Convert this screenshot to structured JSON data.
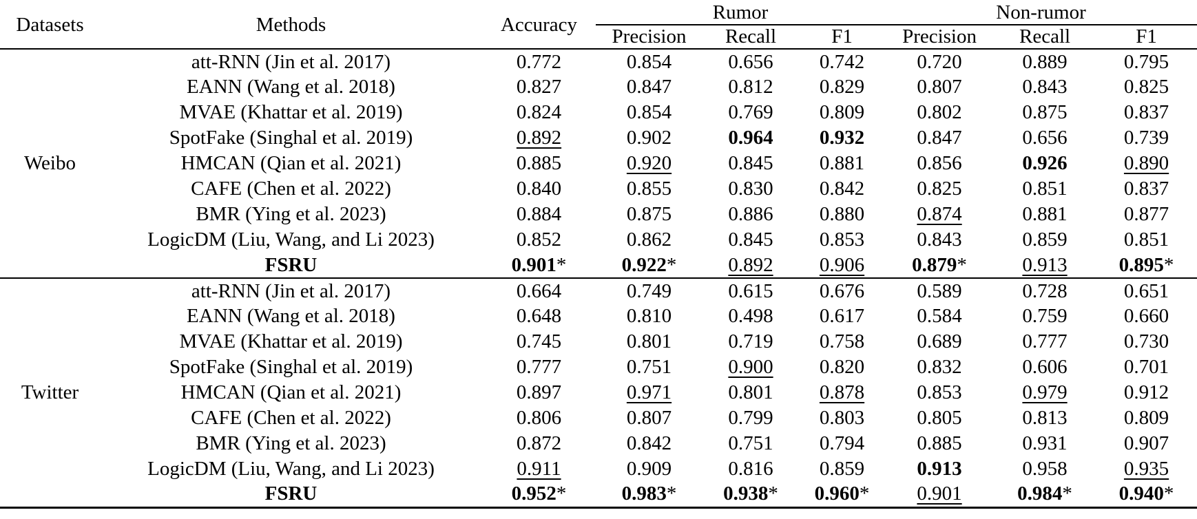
{
  "ink_color": "#000000",
  "background_color": "#ffffff",
  "table": {
    "headers": {
      "datasets": "Datasets",
      "methods": "Methods",
      "accuracy": "Accuracy",
      "rumor": "Rumor",
      "non_rumor": "Non-rumor",
      "sub": [
        "Precision",
        "Recall",
        "F1",
        "Precision",
        "Recall",
        "F1"
      ]
    },
    "emphasis_legend": {
      "b": "bold value",
      "u": "underlined value",
      "s": "asterisk marker after value"
    },
    "sections": [
      {
        "dataset": "Weibo",
        "rows": [
          {
            "method": "att-RNN (Jin et al. 2017)",
            "cells": [
              {
                "v": "0.772"
              },
              {
                "v": "0.854"
              },
              {
                "v": "0.656"
              },
              {
                "v": "0.742"
              },
              {
                "v": "0.720"
              },
              {
                "v": "0.889"
              },
              {
                "v": "0.795"
              }
            ]
          },
          {
            "method": "EANN (Wang et al. 2018)",
            "cells": [
              {
                "v": "0.827"
              },
              {
                "v": "0.847"
              },
              {
                "v": "0.812"
              },
              {
                "v": "0.829"
              },
              {
                "v": "0.807"
              },
              {
                "v": "0.843"
              },
              {
                "v": "0.825"
              }
            ]
          },
          {
            "method": "MVAE (Khattar et al. 2019)",
            "cells": [
              {
                "v": "0.824"
              },
              {
                "v": "0.854"
              },
              {
                "v": "0.769"
              },
              {
                "v": "0.809"
              },
              {
                "v": "0.802"
              },
              {
                "v": "0.875"
              },
              {
                "v": "0.837"
              }
            ]
          },
          {
            "method": "SpotFake (Singhal et al. 2019)",
            "cells": [
              {
                "v": "0.892",
                "u": 1
              },
              {
                "v": "0.902"
              },
              {
                "v": "0.964",
                "b": 1
              },
              {
                "v": "0.932",
                "b": 1
              },
              {
                "v": "0.847"
              },
              {
                "v": "0.656"
              },
              {
                "v": "0.739"
              }
            ]
          },
          {
            "method": "HMCAN (Qian et al. 2021)",
            "cells": [
              {
                "v": "0.885"
              },
              {
                "v": "0.920",
                "u": 1
              },
              {
                "v": "0.845"
              },
              {
                "v": "0.881"
              },
              {
                "v": "0.856"
              },
              {
                "v": "0.926",
                "b": 1
              },
              {
                "v": "0.890",
                "u": 1
              }
            ]
          },
          {
            "method": "CAFE (Chen et al. 2022)",
            "cells": [
              {
                "v": "0.840"
              },
              {
                "v": "0.855"
              },
              {
                "v": "0.830"
              },
              {
                "v": "0.842"
              },
              {
                "v": "0.825"
              },
              {
                "v": "0.851"
              },
              {
                "v": "0.837"
              }
            ]
          },
          {
            "method": "BMR (Ying et al. 2023)",
            "cells": [
              {
                "v": "0.884"
              },
              {
                "v": "0.875"
              },
              {
                "v": "0.886"
              },
              {
                "v": "0.880"
              },
              {
                "v": "0.874",
                "u": 1
              },
              {
                "v": "0.881"
              },
              {
                "v": "0.877"
              }
            ]
          },
          {
            "method": "LogicDM (Liu, Wang, and Li 2023)",
            "cells": [
              {
                "v": "0.852"
              },
              {
                "v": "0.862"
              },
              {
                "v": "0.845"
              },
              {
                "v": "0.853"
              },
              {
                "v": "0.843"
              },
              {
                "v": "0.859"
              },
              {
                "v": "0.851"
              }
            ]
          },
          {
            "method": "FSRU",
            "bold_method": 1,
            "cells": [
              {
                "v": "0.901",
                "b": 1,
                "s": 1
              },
              {
                "v": "0.922",
                "b": 1,
                "s": 1
              },
              {
                "v": "0.892",
                "u": 1
              },
              {
                "v": "0.906",
                "u": 1
              },
              {
                "v": "0.879",
                "b": 1,
                "s": 1
              },
              {
                "v": "0.913",
                "u": 1
              },
              {
                "v": "0.895",
                "b": 1,
                "s": 1
              }
            ]
          }
        ]
      },
      {
        "dataset": "Twitter",
        "rows": [
          {
            "method": "att-RNN (Jin et al. 2017)",
            "cells": [
              {
                "v": "0.664"
              },
              {
                "v": "0.749"
              },
              {
                "v": "0.615"
              },
              {
                "v": "0.676"
              },
              {
                "v": "0.589"
              },
              {
                "v": "0.728"
              },
              {
                "v": "0.651"
              }
            ]
          },
          {
            "method": "EANN (Wang et al. 2018)",
            "cells": [
              {
                "v": "0.648"
              },
              {
                "v": "0.810"
              },
              {
                "v": "0.498"
              },
              {
                "v": "0.617"
              },
              {
                "v": "0.584"
              },
              {
                "v": "0.759"
              },
              {
                "v": "0.660"
              }
            ]
          },
          {
            "method": "MVAE (Khattar et al. 2019)",
            "cells": [
              {
                "v": "0.745"
              },
              {
                "v": "0.801"
              },
              {
                "v": "0.719"
              },
              {
                "v": "0.758"
              },
              {
                "v": "0.689"
              },
              {
                "v": "0.777"
              },
              {
                "v": "0.730"
              }
            ]
          },
          {
            "method": "SpotFake (Singhal et al. 2019)",
            "cells": [
              {
                "v": "0.777"
              },
              {
                "v": "0.751"
              },
              {
                "v": "0.900",
                "u": 1
              },
              {
                "v": "0.820"
              },
              {
                "v": "0.832"
              },
              {
                "v": "0.606"
              },
              {
                "v": "0.701"
              }
            ]
          },
          {
            "method": "HMCAN (Qian et al. 2021)",
            "cells": [
              {
                "v": "0.897"
              },
              {
                "v": "0.971",
                "u": 1
              },
              {
                "v": "0.801"
              },
              {
                "v": "0.878",
                "u": 1
              },
              {
                "v": "0.853"
              },
              {
                "v": "0.979",
                "u": 1
              },
              {
                "v": "0.912"
              }
            ]
          },
          {
            "method": "CAFE (Chen et al. 2022)",
            "cells": [
              {
                "v": "0.806"
              },
              {
                "v": "0.807"
              },
              {
                "v": "0.799"
              },
              {
                "v": "0.803"
              },
              {
                "v": "0.805"
              },
              {
                "v": "0.813"
              },
              {
                "v": "0.809"
              }
            ]
          },
          {
            "method": "BMR (Ying et al. 2023)",
            "cells": [
              {
                "v": "0.872"
              },
              {
                "v": "0.842"
              },
              {
                "v": "0.751"
              },
              {
                "v": "0.794"
              },
              {
                "v": "0.885"
              },
              {
                "v": "0.931"
              },
              {
                "v": "0.907"
              }
            ]
          },
          {
            "method": "LogicDM (Liu, Wang, and Li 2023)",
            "cells": [
              {
                "v": "0.911",
                "u": 1
              },
              {
                "v": "0.909"
              },
              {
                "v": "0.816"
              },
              {
                "v": "0.859"
              },
              {
                "v": "0.913",
                "b": 1
              },
              {
                "v": "0.958"
              },
              {
                "v": "0.935",
                "u": 1
              }
            ]
          },
          {
            "method": "FSRU",
            "bold_method": 1,
            "cells": [
              {
                "v": "0.952",
                "b": 1,
                "s": 1
              },
              {
                "v": "0.983",
                "b": 1,
                "s": 1
              },
              {
                "v": "0.938",
                "b": 1,
                "s": 1
              },
              {
                "v": "0.960",
                "b": 1,
                "s": 1
              },
              {
                "v": "0.901",
                "u": 1
              },
              {
                "v": "0.984",
                "b": 1,
                "s": 1
              },
              {
                "v": "0.940",
                "b": 1,
                "s": 1
              }
            ]
          }
        ]
      }
    ]
  }
}
